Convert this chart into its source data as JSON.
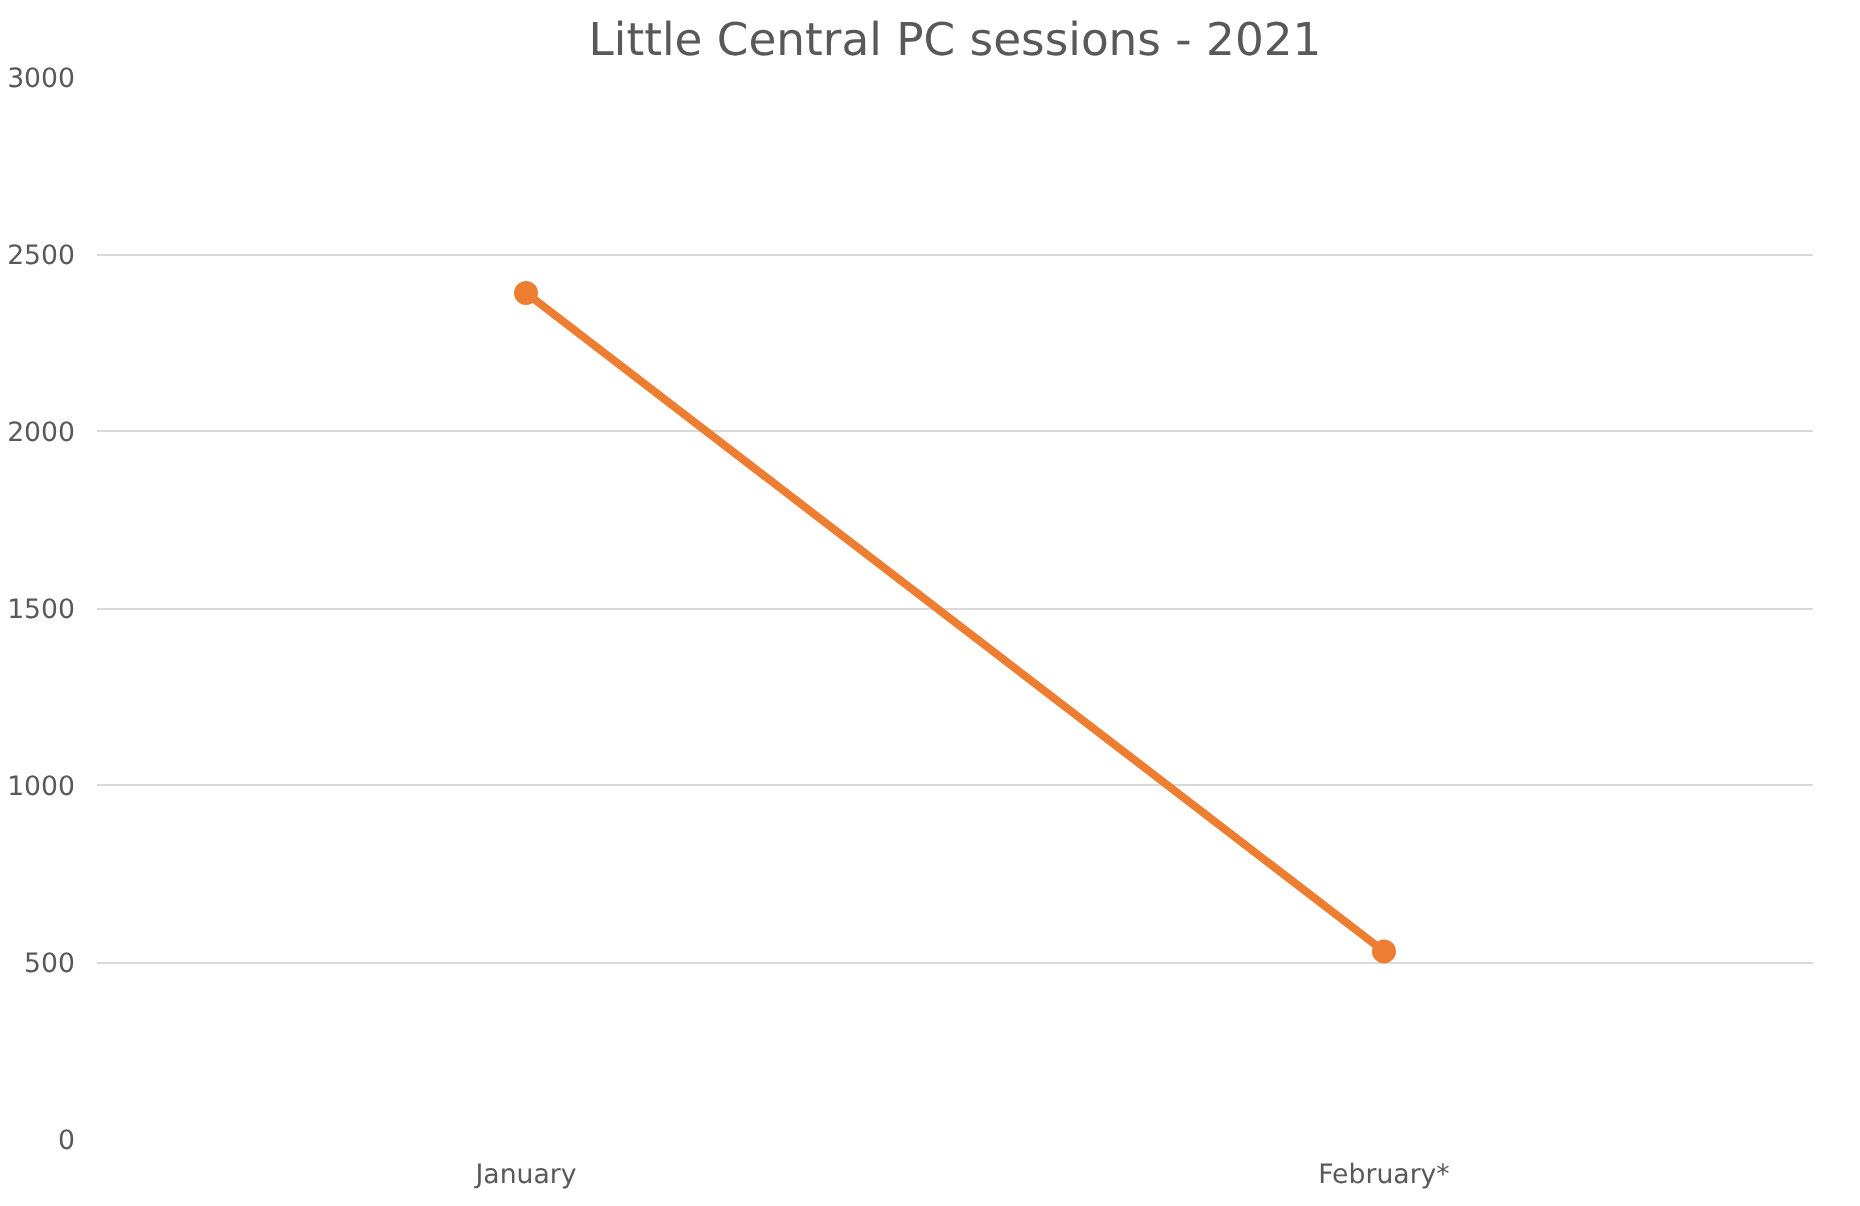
{
  "chart_data": {
    "type": "line",
    "title": "Little Central PC sessions - 2021",
    "categories": [
      "January",
      "February*"
    ],
    "series": [
      {
        "color": "#ed7d31",
        "values": [
          2390,
          530
        ]
      }
    ],
    "ylim": [
      0,
      3000
    ],
    "yticks": [
      0,
      500,
      1000,
      1500,
      2000,
      2500,
      3000
    ],
    "grid": "y",
    "marker": "circle",
    "line_style": "solid"
  }
}
